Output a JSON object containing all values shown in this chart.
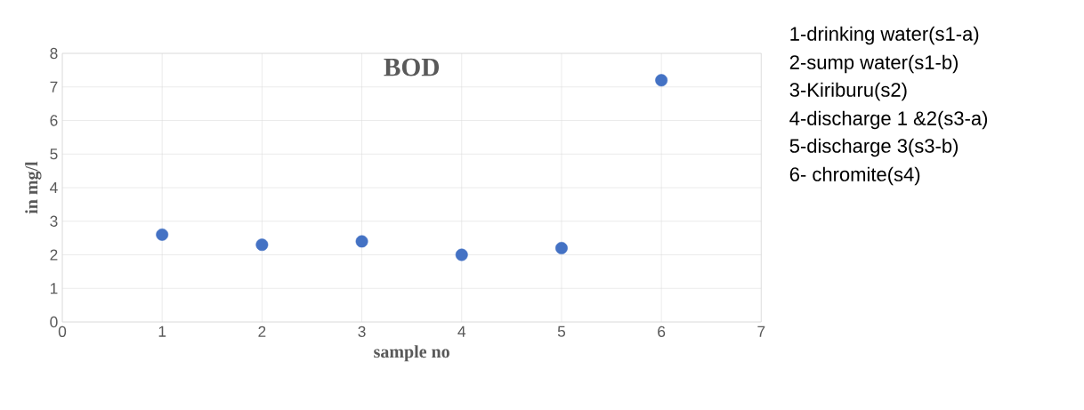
{
  "chart_data": {
    "type": "scatter",
    "title": "BOD",
    "xlabel": "sample no",
    "ylabel": "in mg/l",
    "x": [
      1,
      2,
      3,
      4,
      5,
      6
    ],
    "series": [
      {
        "color": "#4472c4",
        "values": [
          2.6,
          2.3,
          2.4,
          2.0,
          2.2,
          7.2
        ]
      }
    ],
    "xlim": [
      0,
      7
    ],
    "ylim": [
      0,
      8
    ],
    "xticks": [
      0,
      1,
      2,
      3,
      4,
      5,
      6,
      7
    ],
    "yticks": [
      0,
      1,
      2,
      3,
      4,
      5,
      6,
      7,
      8
    ],
    "grid": true,
    "marker": "circle",
    "annotations": [
      "1-drinking water(s1-a)",
      "2-sump water(s1-b)",
      "3-Kiriburu(s2)",
      "4-discharge 1 &2(s3-a)",
      "5-discharge 3(s3-b)",
      "6- chromite(s4)"
    ]
  }
}
